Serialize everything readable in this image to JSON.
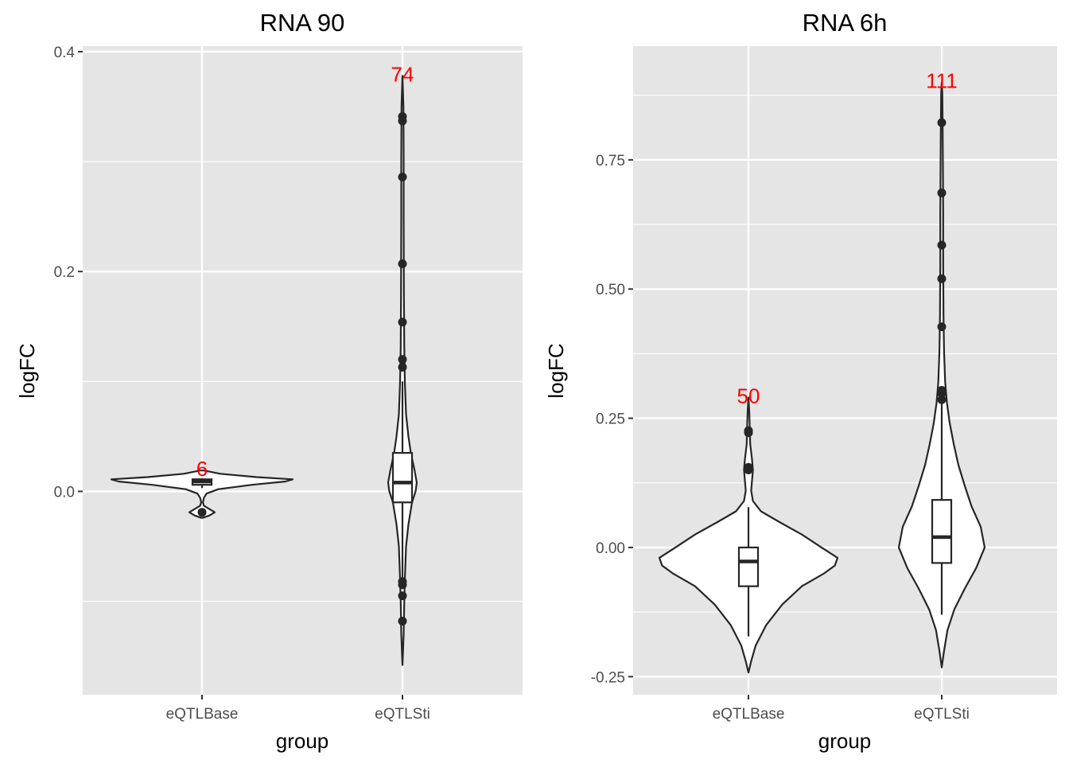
{
  "chart_data": [
    {
      "type": "violin",
      "title": "RNA 90",
      "xlabel": "group",
      "ylabel": "logFC",
      "ylim": [
        -0.185,
        0.405
      ],
      "yticks": [
        0.0,
        0.2,
        0.4
      ],
      "ytick_labels": [
        "0.0",
        "0.2",
        "0.4"
      ],
      "categories": [
        "eQTLBase",
        "eQTLSti"
      ],
      "groups": [
        {
          "category": "eQTLBase",
          "count_label": "6",
          "count_color": "#ff0000",
          "box": {
            "lower_hinge": 0.006,
            "median": 0.009,
            "upper_hinge": 0.011,
            "lower_whisker": 0.003,
            "upper_whisker": 0.012
          },
          "outliers": [
            -0.019
          ],
          "violin": {
            "y": [
              -0.024,
              -0.022,
              -0.019,
              -0.016,
              -0.013,
              -0.01,
              -0.006,
              -0.002,
              0.002,
              0.006,
              0.009,
              0.011,
              0.013,
              0.016,
              0.019
            ],
            "width": [
              0.01,
              0.08,
              0.14,
              0.08,
              0.02,
              0.01,
              0.02,
              0.05,
              0.18,
              0.55,
              0.92,
              1.0,
              0.6,
              0.2,
              0.02
            ]
          }
        },
        {
          "category": "eQTLSti",
          "count_label": "74",
          "count_color": "#ff0000",
          "box": {
            "lower_hinge": -0.01,
            "median": 0.008,
            "upper_hinge": 0.035,
            "lower_whisker": -0.079,
            "upper_whisker": 0.1
          },
          "outliers": [
            0.341,
            0.337,
            0.286,
            0.207,
            0.154,
            0.12,
            0.113,
            -0.082,
            -0.085,
            -0.095,
            -0.118
          ],
          "violin": {
            "y": [
              -0.158,
              -0.13,
              -0.1,
              -0.08,
              -0.05,
              -0.03,
              -0.01,
              0.0,
              0.008,
              0.02,
              0.035,
              0.05,
              0.07,
              0.1,
              0.13,
              0.18,
              0.25,
              0.3,
              0.35,
              0.378
            ],
            "width": [
              0.0,
              0.01,
              0.015,
              0.02,
              0.03,
              0.05,
              0.08,
              0.11,
              0.12,
              0.1,
              0.07,
              0.05,
              0.03,
              0.02,
              0.015,
              0.012,
              0.01,
              0.01,
              0.008,
              0.0
            ]
          }
        }
      ]
    },
    {
      "type": "violin",
      "title": "RNA 6h",
      "xlabel": "group",
      "ylabel": "logFC",
      "ylim": [
        -0.285,
        0.97
      ],
      "yticks": [
        -0.25,
        0.0,
        0.25,
        0.5,
        0.75
      ],
      "ytick_labels": [
        "-0.25",
        "0.00",
        "0.25",
        "0.50",
        "0.75"
      ],
      "categories": [
        "eQTLBase",
        "eQTLSti"
      ],
      "groups": [
        {
          "category": "eQTLBase",
          "count_label": "50",
          "count_color": "#ff0000",
          "box": {
            "lower_hinge": -0.075,
            "median": -0.027,
            "upper_hinge": 0.0,
            "lower_whisker": -0.172,
            "upper_whisker": 0.078
          },
          "outliers": [
            0.226,
            0.222,
            0.155,
            0.15
          ],
          "violin": {
            "y": [
              -0.242,
              -0.22,
              -0.19,
              -0.15,
              -0.11,
              -0.075,
              -0.05,
              -0.035,
              -0.02,
              0.0,
              0.025,
              0.05,
              0.07,
              0.09,
              0.11,
              0.13,
              0.15,
              0.17,
              0.2,
              0.23,
              0.26,
              0.29
            ],
            "width": [
              0.0,
              0.03,
              0.08,
              0.2,
              0.38,
              0.6,
              0.85,
              0.97,
              1.0,
              0.82,
              0.6,
              0.34,
              0.14,
              0.05,
              0.03,
              0.04,
              0.05,
              0.04,
              0.02,
              0.015,
              0.01,
              0.0
            ]
          }
        },
        {
          "category": "eQTLSti",
          "count_label": "111",
          "count_color": "#ff0000",
          "box": {
            "lower_hinge": -0.03,
            "median": 0.02,
            "upper_hinge": 0.092,
            "lower_whisker": -0.13,
            "upper_whisker": 0.282
          },
          "outliers": [
            0.822,
            0.686,
            0.585,
            0.52,
            0.427,
            0.304,
            0.298,
            0.286
          ],
          "violin": {
            "y": [
              -0.232,
              -0.2,
              -0.16,
              -0.12,
              -0.08,
              -0.04,
              0.0,
              0.04,
              0.08,
              0.12,
              0.16,
              0.2,
              0.24,
              0.28,
              0.32,
              0.38,
              0.45,
              0.55,
              0.65,
              0.75,
              0.82,
              0.88,
              0.9
            ],
            "width": [
              0.0,
              0.04,
              0.1,
              0.22,
              0.4,
              0.6,
              0.75,
              0.68,
              0.52,
              0.4,
              0.29,
              0.21,
              0.14,
              0.09,
              0.06,
              0.04,
              0.03,
              0.025,
              0.025,
              0.02,
              0.015,
              0.01,
              0.0
            ]
          }
        }
      ]
    }
  ]
}
